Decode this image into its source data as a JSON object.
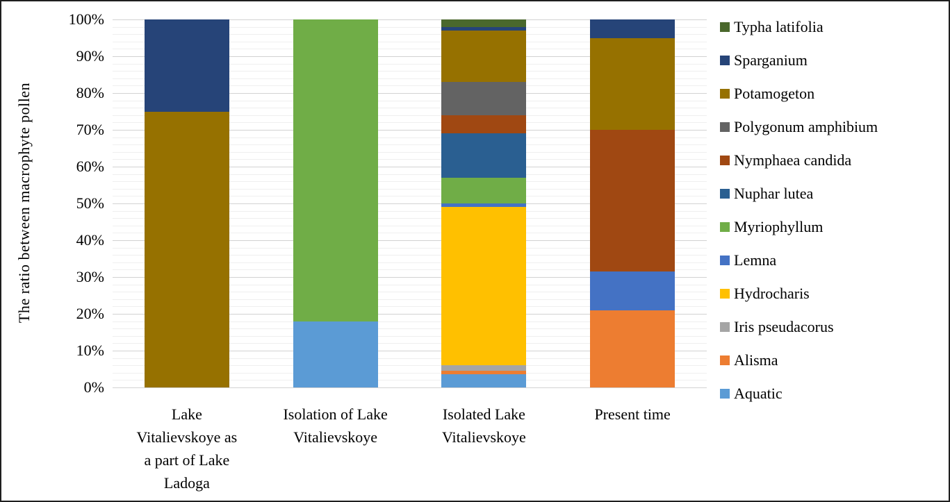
{
  "chart_data": {
    "type": "bar",
    "stacked": true,
    "title": "",
    "xlabel": "",
    "ylabel": "The ratio between macrophyte pollen",
    "ylim": [
      0,
      100
    ],
    "y_tick_labels": [
      "100%",
      "90%",
      "80%",
      "70%",
      "60%",
      "50%",
      "40%",
      "30%",
      "20%",
      "10%",
      "0%"
    ],
    "y_major_unit": 10,
    "y_minor_unit": 2,
    "grid": true,
    "legend_position": "right",
    "categories": [
      "Lake Vitalievskoye as a part of Lake Ladoga",
      "Isolation of Lake Vitalievskoye",
      "Isolated Lake Vitalievskoye",
      "Present time"
    ],
    "category_label_lines": [
      [
        "Lake",
        "Vitalievskoye as",
        "a part of Lake",
        "Ladoga"
      ],
      [
        "Isolation of Lake",
        "Vitalievskoye"
      ],
      [
        "Isolated Lake",
        "Vitalievskoye"
      ],
      [
        "Present time"
      ]
    ],
    "series": [
      {
        "name": "Aquatic",
        "color": "#5B9BD5",
        "values": [
          0,
          18,
          3.5,
          0
        ]
      },
      {
        "name": "Alisma",
        "color": "#ED7D31",
        "values": [
          0,
          0,
          1,
          21
        ]
      },
      {
        "name": "Iris pseudacorus",
        "color": "#A5A5A5",
        "values": [
          0,
          0,
          1.5,
          0
        ]
      },
      {
        "name": "Hydrocharis",
        "color": "#FFC000",
        "values": [
          0,
          0,
          43,
          0
        ]
      },
      {
        "name": "Lemna",
        "color": "#4472C4",
        "values": [
          0,
          0,
          1,
          10.5
        ]
      },
      {
        "name": "Myriophyllum",
        "color": "#70AD47",
        "values": [
          0,
          82,
          7,
          0
        ]
      },
      {
        "name": "Nuphar lutea",
        "color": "#2A5F91",
        "values": [
          0,
          0,
          12,
          0
        ]
      },
      {
        "name": "Nymphaea candida",
        "color": "#A04812",
        "values": [
          0,
          0,
          5,
          38.5
        ]
      },
      {
        "name": "Polygonum amphibium",
        "color": "#636363",
        "values": [
          0,
          0,
          9,
          0
        ]
      },
      {
        "name": "Potamogeton",
        "color": "#967100",
        "values": [
          75,
          0,
          14,
          25
        ]
      },
      {
        "name": "Sparganium",
        "color": "#264478",
        "values": [
          25,
          0,
          1,
          5
        ]
      },
      {
        "name": "Typha latifolia",
        "color": "#4A682C",
        "values": [
          0,
          0,
          2,
          0
        ]
      }
    ],
    "legend": [
      "Typha latifolia",
      "Sparganium",
      "Potamogeton",
      "Polygonum amphibium",
      "Nymphaea candida",
      "Nuphar lutea",
      "Myriophyllum",
      "Lemna",
      "Hydrocharis",
      "Iris pseudacorus",
      "Alisma",
      "Aquatic"
    ]
  }
}
